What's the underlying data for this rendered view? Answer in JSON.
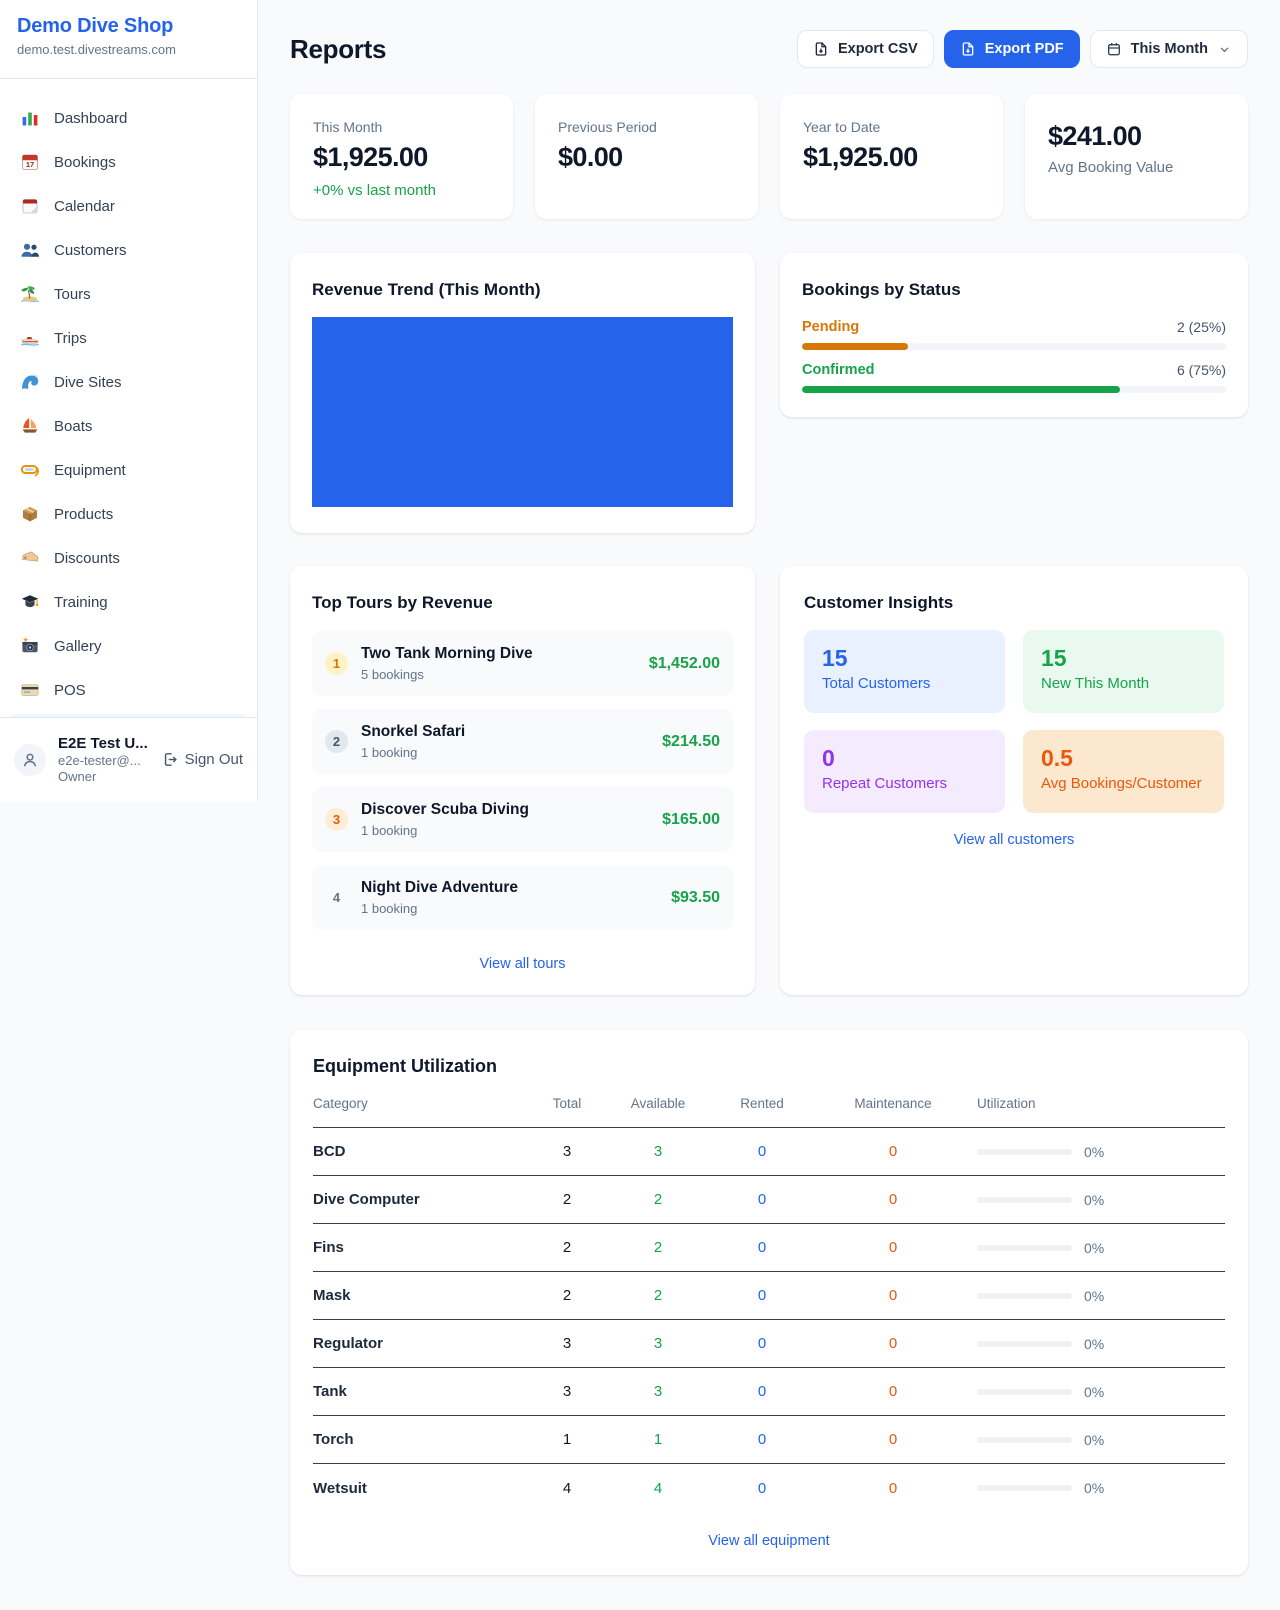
{
  "sidebar": {
    "brand": {
      "name": "Demo Dive Shop",
      "domain": "demo.test.divestreams.com"
    },
    "items": [
      {
        "label": "Dashboard",
        "icon": "bar-chart"
      },
      {
        "label": "Bookings",
        "icon": "calendar-17"
      },
      {
        "label": "Calendar",
        "icon": "tear-off-calendar"
      },
      {
        "label": "Customers",
        "icon": "people"
      },
      {
        "label": "Tours",
        "icon": "island"
      },
      {
        "label": "Trips",
        "icon": "speedboat"
      },
      {
        "label": "Dive Sites",
        "icon": "wave"
      },
      {
        "label": "Boats",
        "icon": "sailboat"
      },
      {
        "label": "Equipment",
        "icon": "diving-mask"
      },
      {
        "label": "Products",
        "icon": "package"
      },
      {
        "label": "Discounts",
        "icon": "tag"
      },
      {
        "label": "Training",
        "icon": "graduation-cap"
      },
      {
        "label": "Gallery",
        "icon": "camera"
      },
      {
        "label": "POS",
        "icon": "credit-card"
      }
    ],
    "user": {
      "name": "E2E Test U...",
      "email": "e2e-tester@...",
      "role": "Owner",
      "signout": "Sign Out"
    }
  },
  "header": {
    "title": "Reports",
    "export_csv": "Export CSV",
    "export_pdf": "Export PDF",
    "period": "This Month"
  },
  "stats": [
    {
      "label": "This Month",
      "value": "$1,925.00",
      "delta": "+0% vs last month"
    },
    {
      "label": "Previous Period",
      "value": "$0.00"
    },
    {
      "label": "Year to Date",
      "value": "$1,925.00"
    },
    {
      "label": "Avg Booking Value",
      "value": "$241.00"
    }
  ],
  "revenue_trend": {
    "title": "Revenue Trend (This Month)",
    "bar_color": "#2563eb"
  },
  "bookings_by_status": {
    "title": "Bookings by Status",
    "rows": [
      {
        "label": "Pending",
        "count": "2 (25%)",
        "pct": 25,
        "color": "#d97706"
      },
      {
        "label": "Confirmed",
        "count": "6 (75%)",
        "pct": 75,
        "color": "#16a34a"
      }
    ]
  },
  "top_tours": {
    "title": "Top Tours by Revenue",
    "rows": [
      {
        "rank": "1",
        "name": "Two Tank Morning Dive",
        "bookings": "5 bookings",
        "amount": "$1,452.00"
      },
      {
        "rank": "2",
        "name": "Snorkel Safari",
        "bookings": "1 booking",
        "amount": "$214.50"
      },
      {
        "rank": "3",
        "name": "Discover Scuba Diving",
        "bookings": "1 booking",
        "amount": "$165.00"
      },
      {
        "rank": "4",
        "name": "Night Dive Adventure",
        "bookings": "1 booking",
        "amount": "$93.50"
      }
    ],
    "link": "View all tours"
  },
  "customer_insights": {
    "title": "Customer Insights",
    "tiles": [
      {
        "value": "15",
        "label": "Total Customers",
        "color": "blue"
      },
      {
        "value": "15",
        "label": "New This Month",
        "color": "green"
      },
      {
        "value": "0",
        "label": "Repeat Customers",
        "color": "purple"
      },
      {
        "value": "0.5",
        "label": "Avg Bookings/Customer",
        "color": "orange"
      }
    ],
    "link": "View all customers"
  },
  "equipment": {
    "title": "Equipment Utilization",
    "columns": [
      "Category",
      "Total",
      "Available",
      "Rented",
      "Maintenance",
      "Utilization"
    ],
    "rows": [
      {
        "category": "BCD",
        "total": "3",
        "available": "3",
        "rented": "0",
        "maintenance": "0",
        "utilization": "0%",
        "pct": 0
      },
      {
        "category": "Dive Computer",
        "total": "2",
        "available": "2",
        "rented": "0",
        "maintenance": "0",
        "utilization": "0%",
        "pct": 0
      },
      {
        "category": "Fins",
        "total": "2",
        "available": "2",
        "rented": "0",
        "maintenance": "0",
        "utilization": "0%",
        "pct": 0
      },
      {
        "category": "Mask",
        "total": "2",
        "available": "2",
        "rented": "0",
        "maintenance": "0",
        "utilization": "0%",
        "pct": 0
      },
      {
        "category": "Regulator",
        "total": "3",
        "available": "3",
        "rented": "0",
        "maintenance": "0",
        "utilization": "0%",
        "pct": 0
      },
      {
        "category": "Tank",
        "total": "3",
        "available": "3",
        "rented": "0",
        "maintenance": "0",
        "utilization": "0%",
        "pct": 0
      },
      {
        "category": "Torch",
        "total": "1",
        "available": "1",
        "rented": "0",
        "maintenance": "0",
        "utilization": "0%",
        "pct": 0
      },
      {
        "category": "Wetsuit",
        "total": "4",
        "available": "4",
        "rented": "0",
        "maintenance": "0",
        "utilization": "0%",
        "pct": 0
      }
    ],
    "link": "View all equipment"
  }
}
